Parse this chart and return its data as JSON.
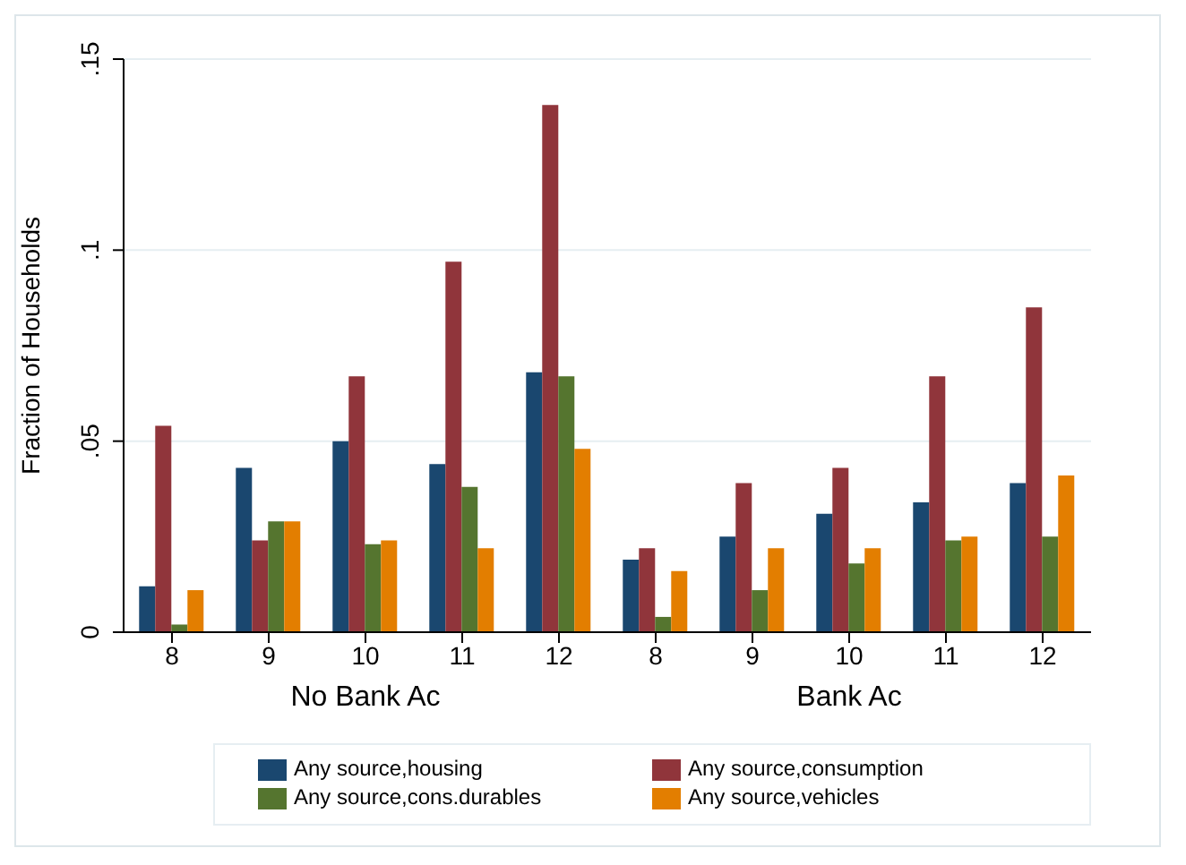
{
  "chart_data": {
    "type": "bar",
    "ylabel": "Fraction of Households",
    "categories": [
      "8",
      "9",
      "10",
      "11",
      "12",
      "8",
      "9",
      "10",
      "11",
      "12"
    ],
    "annotations": [
      "No Bank Ac",
      "Bank Ac"
    ],
    "series": [
      {
        "name": "Any source,housing",
        "color": "#1a476f",
        "values": [
          0.012,
          0.043,
          0.05,
          0.044,
          0.068,
          0.019,
          0.025,
          0.031,
          0.034,
          0.039
        ]
      },
      {
        "name": "Any source,consumption",
        "color": "#90353b",
        "values": [
          0.054,
          0.024,
          0.067,
          0.097,
          0.138,
          0.022,
          0.039,
          0.043,
          0.067,
          0.085
        ]
      },
      {
        "name": "Any source,cons.durables",
        "color": "#55752f",
        "values": [
          0.002,
          0.029,
          0.023,
          0.038,
          0.067,
          0.004,
          0.011,
          0.018,
          0.024,
          0.025
        ]
      },
      {
        "name": "Any source,vehicles",
        "color": "#e37e00",
        "values": [
          0.011,
          0.029,
          0.024,
          0.022,
          0.048,
          0.016,
          0.022,
          0.022,
          0.025,
          0.041
        ]
      }
    ],
    "ylim": [
      0,
      0.15
    ],
    "yticks": [
      {
        "value": 0,
        "label": "0"
      },
      {
        "value": 0.05,
        "label": ".05"
      },
      {
        "value": 0.1,
        "label": ".1"
      },
      {
        "value": 0.15,
        "label": ".15"
      }
    ],
    "grid": "y",
    "legend": "bottom"
  }
}
